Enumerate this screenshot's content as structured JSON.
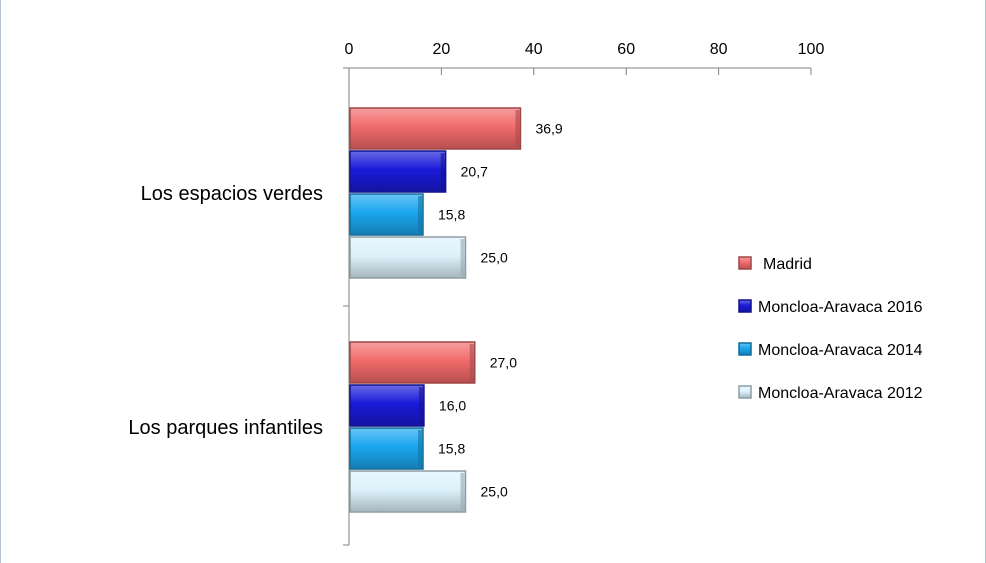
{
  "chart_data": {
    "type": "bar",
    "orientation": "horizontal",
    "categories": [
      "Los espacios verdes",
      "Los parques infantiles"
    ],
    "series": [
      {
        "name": "Madrid",
        "values": [
          36.9,
          27.0
        ],
        "labels": [
          "36,9",
          "27,0"
        ],
        "color": "#f26b6b"
      },
      {
        "name": "Moncloa-Aravaca 2016",
        "values": [
          20.7,
          16.0
        ],
        "labels": [
          "20,7",
          "16,0"
        ],
        "color": "#1a1ad8"
      },
      {
        "name": "Moncloa-Aravaca 2014",
        "values": [
          15.8,
          15.8
        ],
        "labels": [
          "15,8",
          "15,8"
        ],
        "color": "#1aa6ef"
      },
      {
        "name": "Moncloa-Aravaca 2012",
        "values": [
          25.0,
          25.0
        ],
        "labels": [
          "25,0",
          "25,0"
        ],
        "color": "#dcf2fb"
      }
    ],
    "xlim": [
      0,
      100
    ],
    "xticks": [
      0,
      20,
      40,
      60,
      80,
      100
    ],
    "tick_labels": [
      "0",
      "20",
      "40",
      "60",
      "80",
      "100"
    ],
    "x_axis_position": "top",
    "legend_position": "right",
    "grid": false
  }
}
